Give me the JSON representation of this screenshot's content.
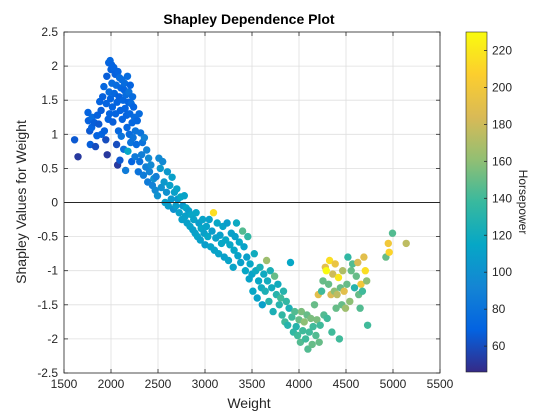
{
  "chart_data": {
    "type": "scatter",
    "title": "Shapley Dependence Plot",
    "xlabel": "Weight",
    "ylabel": "Shapley Values for Weight",
    "xlim": [
      1500,
      5500
    ],
    "ylim": [
      -2.5,
      2.5
    ],
    "xticks": [
      1500,
      2000,
      2500,
      3000,
      3500,
      4000,
      4500,
      5000,
      5500
    ],
    "yticks": [
      -2.5,
      -2,
      -1.5,
      -1,
      -0.5,
      0,
      0.5,
      1,
      1.5,
      2,
      2.5
    ],
    "grid": true,
    "reference_line_y": 0,
    "colorbar": {
      "label": "Horsepower",
      "range": [
        46,
        230
      ],
      "ticks": [
        60,
        80,
        100,
        120,
        140,
        160,
        180,
        200,
        220
      ],
      "colormap": "parula"
    },
    "points": [
      [
        1613,
        0.92,
        65
      ],
      [
        1649,
        0.67,
        52
      ],
      [
        1755,
        1.32,
        70
      ],
      [
        1760,
        1.2,
        68
      ],
      [
        1773,
        1.05,
        65
      ],
      [
        1780,
        0.85,
        67
      ],
      [
        1795,
        1.1,
        70
      ],
      [
        1800,
        1.25,
        75
      ],
      [
        1825,
        1.17,
        67
      ],
      [
        1835,
        0.82,
        60
      ],
      [
        1850,
        0.98,
        70
      ],
      [
        1855,
        1.28,
        68
      ],
      [
        1870,
        1.15,
        65
      ],
      [
        1880,
        1.48,
        70
      ],
      [
        1895,
        1.35,
        67
      ],
      [
        1900,
        1.0,
        70
      ],
      [
        1912,
        1.55,
        68
      ],
      [
        1925,
        1.7,
        72
      ],
      [
        1930,
        1.05,
        68
      ],
      [
        1945,
        0.92,
        60
      ],
      [
        1950,
        1.45,
        70
      ],
      [
        1955,
        1.85,
        67
      ],
      [
        1960,
        0.7,
        52
      ],
      [
        1970,
        1.22,
        70
      ],
      [
        1975,
        2.05,
        70
      ],
      [
        1980,
        1.62,
        75
      ],
      [
        1985,
        1.3,
        70
      ],
      [
        1990,
        2.08,
        72
      ],
      [
        1995,
        1.52,
        70
      ],
      [
        2000,
        1.95,
        68
      ],
      [
        2005,
        2.02,
        70
      ],
      [
        2010,
        1.75,
        75
      ],
      [
        2015,
        1.4,
        70
      ],
      [
        2020,
        1.18,
        67
      ],
      [
        2030,
        1.98,
        70
      ],
      [
        2035,
        1.6,
        72
      ],
      [
        2045,
        1.88,
        68
      ],
      [
        2050,
        1.3,
        70
      ],
      [
        2055,
        1.72,
        75
      ],
      [
        2060,
        0.85,
        60
      ],
      [
        2065,
        1.47,
        70
      ],
      [
        2070,
        0.55,
        52
      ],
      [
        2075,
        1.92,
        70
      ],
      [
        2080,
        1.05,
        72
      ],
      [
        2085,
        1.55,
        68
      ],
      [
        2090,
        1.83,
        75
      ],
      [
        2095,
        0.62,
        65
      ],
      [
        2100,
        1.35,
        70
      ],
      [
        2105,
        1.68,
        72
      ],
      [
        2110,
        0.97,
        80
      ],
      [
        2115,
        1.8,
        75
      ],
      [
        2120,
        1.22,
        70
      ],
      [
        2130,
        1.5,
        72
      ],
      [
        2135,
        0.78,
        80
      ],
      [
        2140,
        1.65,
        70
      ],
      [
        2145,
        1.75,
        75
      ],
      [
        2150,
        1.38,
        70
      ],
      [
        2155,
        0.47,
        85
      ],
      [
        2160,
        1.58,
        75
      ],
      [
        2165,
        1.28,
        70
      ],
      [
        2170,
        1.1,
        72
      ],
      [
        2175,
        1.85,
        75
      ],
      [
        2180,
        0.75,
        115
      ],
      [
        2185,
        1.47,
        70
      ],
      [
        2190,
        1.62,
        80
      ],
      [
        2195,
        1.0,
        75
      ],
      [
        2200,
        1.3,
        72
      ],
      [
        2205,
        1.72,
        70
      ],
      [
        2210,
        0.88,
        80
      ],
      [
        2215,
        1.45,
        75
      ],
      [
        2220,
        0.6,
        70
      ],
      [
        2225,
        1.17,
        72
      ],
      [
        2230,
        1.55,
        75
      ],
      [
        2235,
        0.95,
        80
      ],
      [
        2240,
        1.4,
        70
      ],
      [
        2250,
        1.25,
        75
      ],
      [
        2255,
        0.67,
        85
      ],
      [
        2260,
        1.05,
        80
      ],
      [
        2270,
        0.85,
        75
      ],
      [
        2280,
        1.2,
        72
      ],
      [
        2290,
        0.45,
        80
      ],
      [
        2300,
        1.3,
        75
      ],
      [
        2305,
        0.6,
        78
      ],
      [
        2315,
        1.02,
        80
      ],
      [
        2325,
        0.7,
        88
      ],
      [
        2335,
        0.88,
        80
      ],
      [
        2345,
        0.4,
        85
      ],
      [
        2355,
        0.95,
        90
      ],
      [
        2370,
        0.52,
        88
      ],
      [
        2380,
        0.77,
        90
      ],
      [
        2390,
        0.3,
        85
      ],
      [
        2400,
        0.65,
        95
      ],
      [
        2410,
        0.45,
        90
      ],
      [
        2425,
        0.55,
        95
      ],
      [
        2440,
        0.25,
        90
      ],
      [
        2455,
        0.35,
        100
      ],
      [
        2470,
        0.18,
        95
      ],
      [
        2480,
        0.38,
        88
      ],
      [
        2495,
        0.1,
        100
      ],
      [
        2510,
        0.65,
        95
      ],
      [
        2525,
        0.5,
        105
      ],
      [
        2535,
        0.22,
        100
      ],
      [
        2550,
        0.6,
        95
      ],
      [
        2565,
        0.3,
        105
      ],
      [
        2575,
        0.0,
        110
      ],
      [
        2590,
        0.15,
        100
      ],
      [
        2600,
        0.45,
        105
      ],
      [
        2610,
        -0.05,
        108
      ],
      [
        2625,
        0.25,
        110
      ],
      [
        2640,
        0.05,
        105
      ],
      [
        2650,
        0.37,
        110
      ],
      [
        2665,
        -0.1,
        100
      ],
      [
        2675,
        0.15,
        110
      ],
      [
        2690,
        -0.05,
        108
      ],
      [
        2700,
        0.2,
        112
      ],
      [
        2710,
        0.05,
        105
      ],
      [
        2725,
        -0.15,
        110
      ],
      [
        2740,
        0.08,
        115
      ],
      [
        2755,
        -0.25,
        110
      ],
      [
        2765,
        -0.05,
        105
      ],
      [
        2780,
        0.1,
        112
      ],
      [
        2790,
        -0.2,
        110
      ],
      [
        2800,
        -0.08,
        115
      ],
      [
        2810,
        -0.3,
        110
      ],
      [
        2825,
        -0.12,
        108
      ],
      [
        2840,
        -0.35,
        112
      ],
      [
        2855,
        -0.18,
        115
      ],
      [
        2870,
        -0.4,
        110
      ],
      [
        2880,
        -0.25,
        112
      ],
      [
        2895,
        -0.45,
        110
      ],
      [
        2905,
        -0.15,
        115
      ],
      [
        2920,
        -0.5,
        112
      ],
      [
        2935,
        -0.3,
        108
      ],
      [
        2950,
        -0.55,
        110
      ],
      [
        2960,
        -0.38,
        115
      ],
      [
        2975,
        -0.25,
        112
      ],
      [
        2990,
        -0.45,
        110
      ],
      [
        3000,
        -0.62,
        108
      ],
      [
        3015,
        -0.35,
        112
      ],
      [
        3030,
        -0.5,
        115
      ],
      [
        3045,
        -0.25,
        110
      ],
      [
        3060,
        -0.65,
        112
      ],
      [
        3075,
        -0.42,
        108
      ],
      [
        3090,
        -0.15,
        215
      ],
      [
        3100,
        -0.7,
        112
      ],
      [
        3115,
        -0.52,
        110
      ],
      [
        3130,
        -0.3,
        115
      ],
      [
        3145,
        -0.75,
        112
      ],
      [
        3160,
        -0.48,
        110
      ],
      [
        3175,
        -0.6,
        115
      ],
      [
        3190,
        -0.35,
        112
      ],
      [
        3205,
        -0.8,
        110
      ],
      [
        3220,
        -0.55,
        115
      ],
      [
        3235,
        -0.3,
        108
      ],
      [
        3250,
        -0.85,
        112
      ],
      [
        3265,
        -0.62,
        115
      ],
      [
        3280,
        -0.45,
        110
      ],
      [
        3300,
        -0.95,
        112
      ],
      [
        3310,
        -0.7,
        115
      ],
      [
        3320,
        -0.5,
        110
      ],
      [
        3335,
        -0.3,
        118
      ],
      [
        3350,
        -0.78,
        112
      ],
      [
        3365,
        -0.58,
        115
      ],
      [
        3380,
        -0.88,
        110
      ],
      [
        3400,
        -0.42,
        145
      ],
      [
        3415,
        -0.65,
        112
      ],
      [
        3430,
        -1.0,
        115
      ],
      [
        3445,
        -0.8,
        110
      ],
      [
        3455,
        -0.5,
        135
      ],
      [
        3470,
        -1.12,
        112
      ],
      [
        3480,
        -0.9,
        115
      ],
      [
        3500,
        -1.05,
        112
      ],
      [
        3510,
        -1.3,
        115
      ],
      [
        3525,
        -0.75,
        120
      ],
      [
        3540,
        -1.0,
        118
      ],
      [
        3555,
        -1.4,
        112
      ],
      [
        3570,
        -1.15,
        115
      ],
      [
        3585,
        -0.95,
        125
      ],
      [
        3600,
        -1.25,
        120
      ],
      [
        3610,
        -1.5,
        110
      ],
      [
        3625,
        -1.05,
        118
      ],
      [
        3640,
        -1.3,
        125
      ],
      [
        3655,
        -0.85,
        165
      ],
      [
        3665,
        -1.15,
        120
      ],
      [
        3680,
        -1.45,
        130
      ],
      [
        3695,
        -1.0,
        125
      ],
      [
        3710,
        -1.25,
        120
      ],
      [
        3725,
        -1.6,
        125
      ],
      [
        3740,
        -1.08,
        150
      ],
      [
        3760,
        -1.35,
        130
      ],
      [
        3775,
        -1.2,
        120
      ],
      [
        3790,
        -1.5,
        130
      ],
      [
        3805,
        -1.4,
        140
      ],
      [
        3820,
        -1.65,
        135
      ],
      [
        3835,
        -1.3,
        130
      ],
      [
        3850,
        -1.75,
        140
      ],
      [
        3865,
        -1.45,
        135
      ],
      [
        3880,
        -1.8,
        130
      ],
      [
        3895,
        -1.55,
        125
      ],
      [
        3910,
        -0.88,
        115
      ],
      [
        3925,
        -1.68,
        140
      ],
      [
        3940,
        -1.9,
        135
      ],
      [
        3955,
        -1.6,
        145
      ],
      [
        3970,
        -1.82,
        130
      ],
      [
        3985,
        -1.95,
        140
      ],
      [
        4000,
        -1.72,
        150
      ],
      [
        4015,
        -2.05,
        145
      ],
      [
        4025,
        -1.6,
        155
      ],
      [
        4040,
        -1.88,
        140
      ],
      [
        4055,
        -1.75,
        160
      ],
      [
        4070,
        -2.0,
        140
      ],
      [
        4085,
        -1.65,
        150
      ],
      [
        4095,
        -2.15,
        145
      ],
      [
        4110,
        -1.9,
        140
      ],
      [
        4125,
        -1.7,
        155
      ],
      [
        4140,
        -2.08,
        150
      ],
      [
        4150,
        -1.82,
        140
      ],
      [
        4165,
        -1.5,
        150
      ],
      [
        4180,
        -1.95,
        145
      ],
      [
        4190,
        -1.72,
        155
      ],
      [
        4205,
        -1.35,
        190
      ],
      [
        4215,
        -2.05,
        150
      ],
      [
        4225,
        -1.8,
        140
      ],
      [
        4240,
        -1.3,
        140
      ],
      [
        4255,
        -1.15,
        150
      ],
      [
        4265,
        -1.65,
        145
      ],
      [
        4280,
        -0.95,
        190
      ],
      [
        4290,
        -1.0,
        230
      ],
      [
        4300,
        -1.7,
        140
      ],
      [
        4315,
        -1.2,
        150
      ],
      [
        4325,
        -0.85,
        215
      ],
      [
        4340,
        -1.35,
        185
      ],
      [
        4350,
        -1.9,
        140
      ],
      [
        4360,
        -1.05,
        180
      ],
      [
        4375,
        -1.3,
        160
      ],
      [
        4385,
        -0.9,
        195
      ],
      [
        4395,
        -1.55,
        150
      ],
      [
        4405,
        -1.35,
        175
      ],
      [
        4420,
        -1.1,
        220
      ],
      [
        4430,
        -2.0,
        140
      ],
      [
        4440,
        -1.25,
        150
      ],
      [
        4455,
        -1.5,
        150
      ],
      [
        4465,
        -1.0,
        170
      ],
      [
        4480,
        -1.3,
        190
      ],
      [
        4495,
        -1.55,
        165
      ],
      [
        4510,
        -1.2,
        150
      ],
      [
        4520,
        -0.8,
        135
      ],
      [
        4540,
        -1.45,
        160
      ],
      [
        4555,
        -1.0,
        150
      ],
      [
        4570,
        -0.9,
        145
      ],
      [
        4590,
        -1.25,
        130
      ],
      [
        4610,
        -1.08,
        150
      ],
      [
        4625,
        -0.88,
        185
      ],
      [
        4635,
        -1.35,
        150
      ],
      [
        4650,
        -1.55,
        145
      ],
      [
        4660,
        -1.2,
        200
      ],
      [
        4675,
        -1.3,
        140
      ],
      [
        4690,
        -0.8,
        190
      ],
      [
        4705,
        -1.0,
        215
      ],
      [
        4720,
        -1.15,
        160
      ],
      [
        4730,
        -1.8,
        140
      ],
      [
        4925,
        -0.8,
        150
      ],
      [
        4950,
        -0.6,
        200
      ],
      [
        4960,
        -0.73,
        210
      ],
      [
        4995,
        -0.45,
        145
      ],
      [
        5140,
        -0.6,
        175
      ]
    ]
  }
}
